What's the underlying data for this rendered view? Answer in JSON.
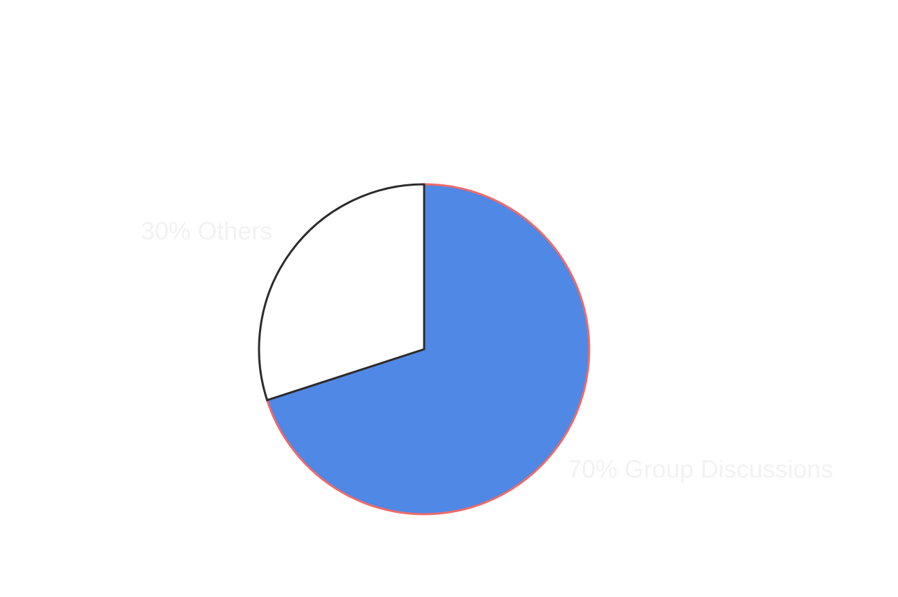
{
  "chart_data": {
    "type": "pie",
    "start": "top",
    "direction": "clockwise",
    "slices": [
      {
        "label": "70% Group Discussions",
        "value": 70,
        "fill": "#4f88e5",
        "stroke": "#ef6a6a"
      },
      {
        "label": "30% Others",
        "value": 30,
        "fill": "#ffffff",
        "stroke": "#2b2b2b"
      }
    ]
  }
}
